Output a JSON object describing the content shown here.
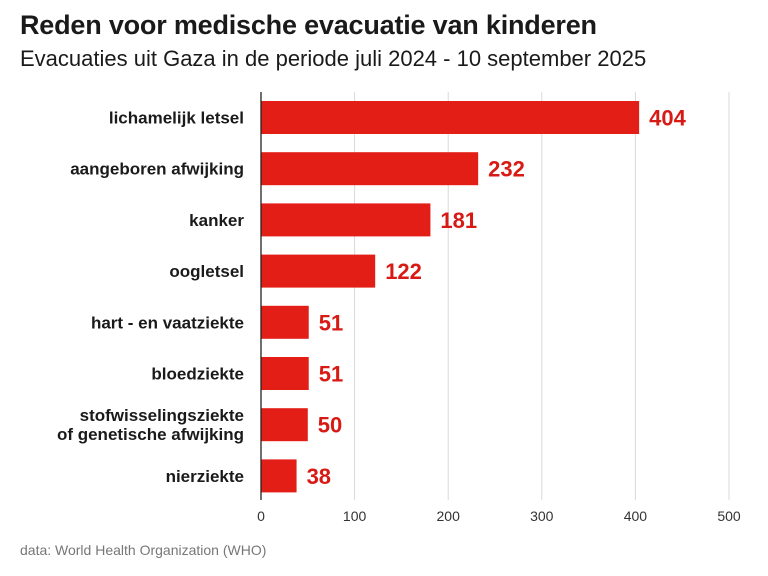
{
  "chart_data": {
    "type": "bar",
    "orientation": "horizontal",
    "title": "Reden voor medische evacuatie van kinderen",
    "subtitle": "Evacuaties uit Gaza in de periode juli 2024 - 10 september 2025",
    "categories": [
      [
        "lichamelijk letsel"
      ],
      [
        "aangeboren afwijking"
      ],
      [
        "kanker"
      ],
      [
        "oogletsel"
      ],
      [
        "hart - en vaatziekte"
      ],
      [
        "bloedziekte"
      ],
      [
        "stofwisselingsziekte",
        "of genetische afwijking"
      ],
      [
        "nierziekte"
      ]
    ],
    "values": [
      404,
      232,
      181,
      122,
      51,
      51,
      50,
      38
    ],
    "xlim": [
      0,
      500
    ],
    "xticks": [
      0,
      100,
      200,
      300,
      400,
      500
    ],
    "grid": true,
    "xlabel": "",
    "ylabel": "",
    "source": "data: World Health Organization (WHO)"
  },
  "colors": {
    "bar": "#e31e17",
    "value_text": "#d71a14",
    "grid": "#d9d9d9",
    "axis": "#222222"
  }
}
